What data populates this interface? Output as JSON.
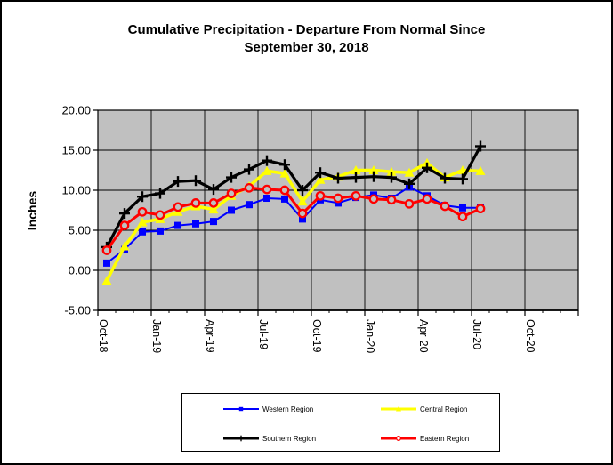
{
  "title": {
    "line1": "Cumulative Precipitation - Departure From Normal Since",
    "line2": "September 30, 2018"
  },
  "axes": {
    "y_title": "Inches"
  },
  "chart_data": {
    "type": "line",
    "title": "Cumulative Precipitation - Departure From Normal Since September 30, 2018",
    "ylabel": "Inches",
    "xlabel": "",
    "plot_bg": "#C0C0C0",
    "grid": "on",
    "legend_position": "bottom",
    "ylim": [
      -5,
      20
    ],
    "y_tick_step": 5,
    "y_ticks": [
      {
        "value": 20,
        "label": "20.00"
      },
      {
        "value": 15,
        "label": "15.00"
      },
      {
        "value": 10,
        "label": "10.00"
      },
      {
        "value": 5,
        "label": "5.00"
      },
      {
        "value": 0,
        "label": "0.00"
      },
      {
        "value": -5,
        "label": "-5.00"
      }
    ],
    "x_slots": 27,
    "x_ticks": [
      {
        "index": 0,
        "label": "Oct-18"
      },
      {
        "index": 3,
        "label": "Jan-19"
      },
      {
        "index": 6,
        "label": "Apr-19"
      },
      {
        "index": 9,
        "label": "Jul-19"
      },
      {
        "index": 12,
        "label": "Oct-19"
      },
      {
        "index": 15,
        "label": "Jan-20"
      },
      {
        "index": 18,
        "label": "Apr-20"
      },
      {
        "index": 21,
        "label": "Jul-20"
      },
      {
        "index": 24,
        "label": "Oct-20"
      }
    ],
    "categories": [
      "Oct-18",
      "Nov-18",
      "Dec-18",
      "Jan-19",
      "Feb-19",
      "Mar-19",
      "Apr-19",
      "May-19",
      "Jun-19",
      "Jul-19",
      "Aug-19",
      "Sep-19",
      "Oct-19",
      "Nov-19",
      "Dec-19",
      "Jan-20",
      "Feb-20",
      "Mar-20",
      "Apr-20",
      "May-20",
      "Jun-20",
      "Jul-20"
    ],
    "series": [
      {
        "name": "Western Region",
        "id": "western",
        "color": "#0000FF",
        "marker": "square",
        "line_width": 2,
        "values": [
          0.9,
          2.6,
          4.8,
          4.9,
          5.6,
          5.8,
          6.1,
          7.5,
          8.2,
          9.0,
          8.9,
          6.4,
          8.8,
          8.4,
          9.1,
          9.4,
          9.0,
          10.4,
          9.3,
          8.1,
          7.8,
          7.8
        ]
      },
      {
        "name": "Central Region",
        "id": "central",
        "color": "#FFFF00",
        "marker": "triangle",
        "line_width": 3.5,
        "values": [
          -1.3,
          3.0,
          6.0,
          6.4,
          7.3,
          8.0,
          7.6,
          9.3,
          10.5,
          12.4,
          12.1,
          8.6,
          11.3,
          11.7,
          12.5,
          12.5,
          12.3,
          12.2,
          13.4,
          11.6,
          12.5,
          12.4
        ]
      },
      {
        "name": "Southern Region",
        "id": "southern",
        "color": "#000000",
        "marker": "plus",
        "line_width": 3.2,
        "values": [
          2.9,
          7.1,
          9.2,
          9.6,
          11.1,
          11.2,
          10.1,
          11.6,
          12.6,
          13.7,
          13.2,
          10.0,
          12.2,
          11.5,
          11.6,
          11.7,
          11.6,
          10.8,
          12.8,
          11.5,
          11.4,
          15.5
        ]
      },
      {
        "name": "Eastern Region",
        "id": "eastern",
        "color": "#FF0000",
        "marker": "circle",
        "line_width": 3,
        "values": [
          2.5,
          5.6,
          7.3,
          6.9,
          7.9,
          8.4,
          8.4,
          9.6,
          10.3,
          10.1,
          10.0,
          7.1,
          9.3,
          9.0,
          9.3,
          8.9,
          8.8,
          8.3,
          8.9,
          8.0,
          6.7,
          7.7
        ]
      }
    ]
  }
}
